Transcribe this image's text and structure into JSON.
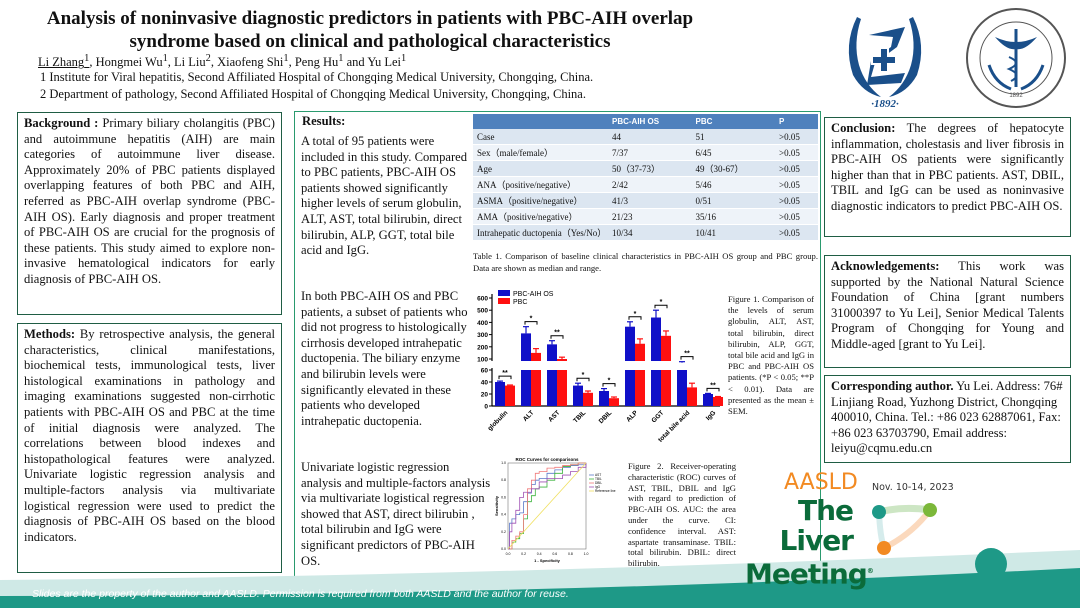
{
  "header": {
    "title": "Analysis of noninvasive diagnostic predictors in patients with PBC-AIH overlap syndrome based on clinical and pathological characteristics",
    "authors": [
      {
        "name": "Li Zhang",
        "sup": "1"
      },
      {
        "name": "Hongmei Wu",
        "sup": "1"
      },
      {
        "name": "Li Liu",
        "sup": "2"
      },
      {
        "name": "Xiaofeng Shi",
        "sup": "1"
      },
      {
        "name": "Peng Hu",
        "sup": "1"
      },
      {
        "name": "Yu Lei",
        "sup": "1"
      }
    ],
    "affiliations": [
      "1 Institute for Viral hepatitis, Second Affiliated Hospital of Chongqing Medical University, Chongqing, China.",
      "2 Department of pathology, Second Affiliated Hospital of Chongqing Medical University, Chongqing, China."
    ],
    "logo1_text": "·1892·",
    "logo2_text": "1892"
  },
  "background": {
    "heading": "Background :",
    "text": " Primary biliary cholangitis (PBC) and autoimmune hepatitis (AIH) are main categories of autoimmune liver disease. Approximately 20% of PBC patients displayed overlapping features of both PBC and AIH, referred as PBC-AIH overlap syndrome (PBC-AIH OS). Early diagnosis and proper treatment of PBC-AIH OS are crucial for the prognosis of these patients. This study aimed to explore non-invasive hematological indicators for early diagnosis of PBC-AIH OS."
  },
  "methods": {
    "heading": "Methods:",
    "text": " By retrospective analysis, the general characteristics, clinical manifestations, biochemical tests, immunological tests, liver histological examinations in pathology and imaging examinations suggested non-cirrhotic patients with PBC-AIH OS and PBC at the time of initial diagnosis were analyzed. The correlations between blood indexes and histopathological features were analyzed. Univariate logistic regression analysis and multiple-factors analysis via multivariate logistical regression were used to predict the diagnosis of PBC-AIH OS based on the blood indicators."
  },
  "results": {
    "heading": "Results:",
    "p1": "A total of 95 patients were included in this study. Compared to PBC patients, PBC-AIH OS patients showed significantly higher levels of serum globulin, ALT, AST, total bilirubin, direct bilirubin, ALP, GGT, total bile acid and IgG.",
    "p2": "In both PBC-AIH OS and PBC patients, a subset of patients who did not progress to histologically cirrhosis developed intrahepatic ductopenia. The biliary enzyme and bilirubin levels were significantly elevated in these patients who developed intrahepatic ductopenia.",
    "p3": "Univariate logistic regression analysis and multiple-factors analysis via multivariate logistical regression showed that AST, direct bilirubin , total bilirubin and IgG were significant predictors of PBC-AIH OS."
  },
  "table1": {
    "headers": [
      "",
      "PBC-AIH OS",
      "PBC",
      "P"
    ],
    "rows": [
      [
        "Case",
        "44",
        "51",
        ">0.05"
      ],
      [
        "Sex（male/female）",
        "7/37",
        "6/45",
        ">0.05"
      ],
      [
        "Age",
        "50（37-73）",
        "49（30-67）",
        ">0.05"
      ],
      [
        "ANA（positive/negative）",
        "2/42",
        "5/46",
        ">0.05"
      ],
      [
        "ASMA（positive/negative）",
        "41/3",
        "0/51",
        ">0.05"
      ],
      [
        "AMA（positive/negative）",
        "21/23",
        "35/16",
        ">0.05"
      ],
      [
        "Intrahepatic ductopenia（Yes/No）",
        "10/34",
        "10/41",
        ">0.05"
      ]
    ],
    "caption": "Table 1. Comparison of baseline clinical characteristics in PBC-AIH OS group and PBC group. Data are shown as median and range."
  },
  "chart_data": [
    {
      "type": "bar",
      "categories": [
        "globulin",
        "ALT",
        "AST",
        "TBIL",
        "DBIL",
        "ALP",
        "GGT",
        "total bile acid",
        "IgG"
      ],
      "series": [
        {
          "name": "PBC-AIH OS",
          "color": "#1010c8",
          "values": [
            40,
            310,
            220,
            34,
            25,
            365,
            440,
            70,
            20
          ],
          "sem": [
            1.5,
            55,
            30,
            4,
            4,
            40,
            60,
            8,
            1
          ]
        },
        {
          "name": "PBC",
          "color": "#ff1010",
          "values": [
            34,
            150,
            100,
            22,
            13,
            225,
            290,
            31,
            15
          ],
          "sem": [
            1,
            35,
            15,
            3,
            2,
            40,
            40,
            7,
            0.8
          ]
        }
      ],
      "significance": [
        "**",
        "*",
        "**",
        "*",
        "*",
        "*",
        "*",
        "**",
        "**"
      ],
      "y_ticks_upper": [
        100,
        200,
        300,
        400,
        500,
        600
      ],
      "y_ticks_lower": [
        0,
        20,
        40,
        60
      ],
      "axis_break": [
        60,
        100
      ],
      "ylim": [
        0,
        600
      ],
      "legend": "top-left",
      "caption": "Figure 1. Comparison of the levels of serum globulin, ALT, AST, total bilirubin, direct bilirubin, ALP, GGT, total bile acid and IgG in PBC and PBC-AIH OS patients. (*P < 0.05; **P < 0.01). Data are presented as the mean ± SEM."
    },
    {
      "type": "line",
      "title": "ROC Curves for comparisons",
      "xlabel": "1 - Specificity",
      "ylabel": "Sensitivity",
      "xlim": [
        0,
        1
      ],
      "ylim": [
        0,
        1
      ],
      "ticks": [
        "0.0",
        "0.2",
        "0.4",
        "0.6",
        "0.8",
        "1.0"
      ],
      "legend": "right",
      "series": [
        {
          "name": "AST",
          "color": "#5a78c8",
          "x": [
            0,
            0.02,
            0.05,
            0.1,
            0.15,
            0.2,
            0.25,
            0.3,
            0.35,
            0.4,
            0.5,
            0.6,
            0.7,
            0.8,
            0.9,
            1
          ],
          "y": [
            0,
            0.3,
            0.35,
            0.4,
            0.42,
            0.55,
            0.65,
            0.75,
            0.8,
            0.82,
            0.88,
            0.92,
            0.95,
            0.97,
            0.98,
            1
          ]
        },
        {
          "name": "TBIL",
          "color": "#3cb43c",
          "x": [
            0,
            0.05,
            0.1,
            0.15,
            0.2,
            0.25,
            0.3,
            0.35,
            0.4,
            0.5,
            0.6,
            0.7,
            0.8,
            0.9,
            1
          ],
          "y": [
            0,
            0.08,
            0.12,
            0.18,
            0.35,
            0.55,
            0.62,
            0.7,
            0.72,
            0.8,
            0.88,
            0.96,
            0.98,
            1,
            1
          ]
        },
        {
          "name": "DBIL",
          "color": "#f07878",
          "x": [
            0,
            0.05,
            0.1,
            0.15,
            0.2,
            0.25,
            0.3,
            0.35,
            0.4,
            0.5,
            0.6,
            0.7,
            0.8,
            0.9,
            1
          ],
          "y": [
            0,
            0.1,
            0.15,
            0.2,
            0.4,
            0.7,
            0.8,
            0.88,
            0.9,
            0.94,
            0.95,
            0.97,
            0.98,
            1,
            1
          ]
        },
        {
          "name": "IgG",
          "color": "#a050b4",
          "x": [
            0,
            0.02,
            0.05,
            0.1,
            0.15,
            0.2,
            0.3,
            0.4,
            0.5,
            0.6,
            0.7,
            0.8,
            0.9,
            1
          ],
          "y": [
            0,
            0.2,
            0.3,
            0.45,
            0.6,
            0.66,
            0.7,
            0.78,
            0.82,
            0.82,
            0.86,
            0.9,
            0.95,
            1
          ]
        },
        {
          "name": "Reference line",
          "color": "#f0e060",
          "x": [
            0,
            1
          ],
          "y": [
            0,
            1
          ]
        }
      ],
      "caption": "Figure 2. Receiver-operating characteristic (ROC) curves of AST, TBIL, DBIL and IgG with regard to prediction of PBC-AIH OS. AUC: the area under the curve. CI: confidence interval. AST: aspartate transaminase. TBIL: total bilirubin. DBIL: direct bilirubin."
    }
  ],
  "conclusion": {
    "heading": "Conclusion:",
    "text": " The degrees of hepatocyte inflammation, cholestasis and liver fibrosis in PBC-AIH OS patients were significantly higher than that in PBC patients. AST, DBIL, TBIL and IgG can be used as noninvasive diagnostic indicators to predict PBC-AIH OS."
  },
  "acknowledgements": {
    "heading": "Acknowledgements:",
    "text": " This work was supported by the National Natural Science Foundation of China [grant numbers 31000397 to Yu Lei], Senior Medical Talents Program of Chongqing for Young and Middle-aged [grant to Yu Lei]."
  },
  "corresponding": {
    "heading": "Corresponding author.",
    "text": " Yu Lei. Address: 76# Linjiang Road, Yuzhong District, Chongqing 400010, China. Tel.: +86 023 62887061, Fax: +86 023 63703790, Email address: leiyu@cqmu.edu.cn"
  },
  "meeting": {
    "org": "AASLD",
    "line1": "The Liver",
    "line2": "Meeting",
    "reg": "®",
    "dates": "Nov. 10-14, 2023"
  },
  "footer": "Slides are the property of the author and AASLD. Permission is required from both AASLD and the author for reuse.",
  "colors": {
    "border": "#1f5d44",
    "teal": "#1e9987",
    "orange": "#f28a22",
    "green": "#0b6b3a",
    "header_blue": "#4f81bd"
  }
}
